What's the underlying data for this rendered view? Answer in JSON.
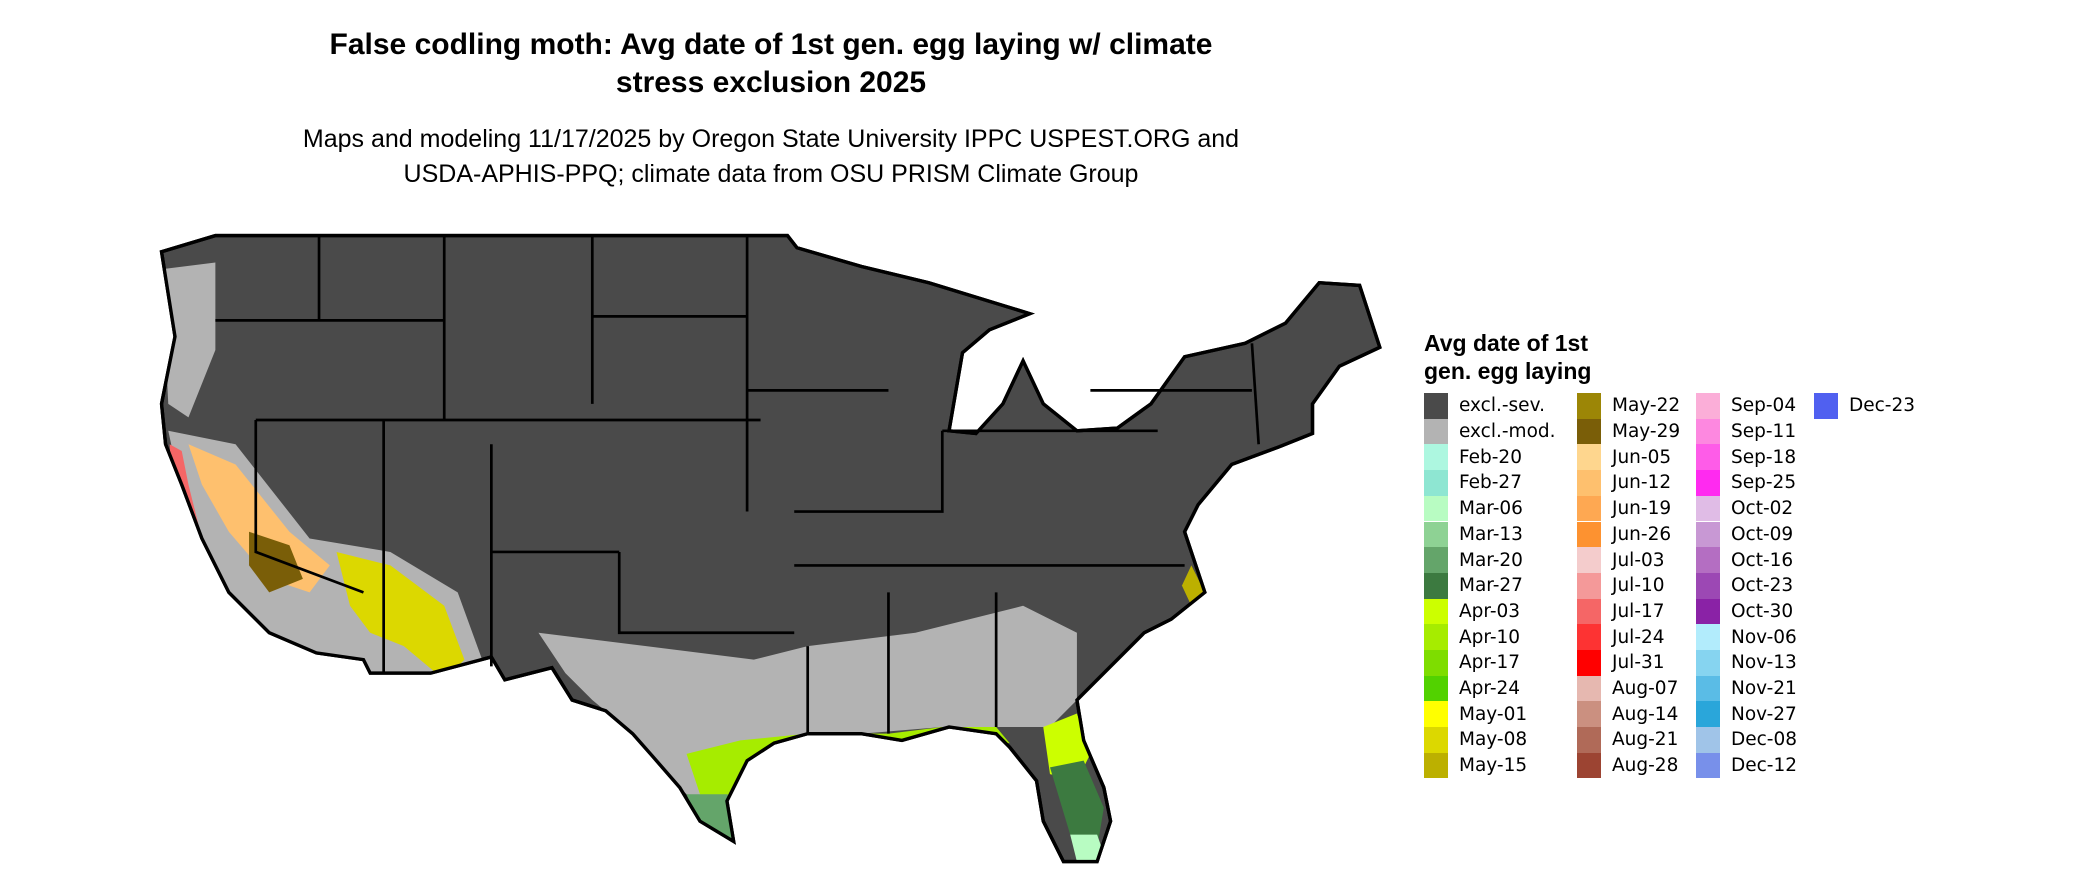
{
  "chart_data": {
    "type": "heatmap",
    "title": "False codling moth: Avg date of 1st gen. egg laying w/ climate stress exclusion 2025",
    "title_lines": [
      "False codling moth: Avg date of 1st gen. egg laying w/ climate",
      "stress exclusion 2025"
    ],
    "subtitle_lines": [
      "Maps and modeling 11/17/2025 by Oregon State University IPPC USPEST.ORG and",
      "USDA-APHIS-PPQ; climate data from OSU PRISM Climate Group"
    ],
    "legend_title_lines": [
      "Avg date of 1st",
      "gen. egg laying"
    ],
    "legend_placement": "right",
    "legend": [
      {
        "label": "excl.-sev.",
        "color": "#4a4a4a"
      },
      {
        "label": "excl.-mod.",
        "color": "#b3b3b3"
      },
      {
        "label": "Feb-20",
        "color": "#adf7e0"
      },
      {
        "label": "Feb-27",
        "color": "#8ee6d2"
      },
      {
        "label": "Mar-06",
        "color": "#b8fcc2"
      },
      {
        "label": "Mar-13",
        "color": "#8ed294"
      },
      {
        "label": "Mar-20",
        "color": "#64a56a"
      },
      {
        "label": "Mar-27",
        "color": "#3c7a40"
      },
      {
        "label": "Apr-03",
        "color": "#ccff00"
      },
      {
        "label": "Apr-10",
        "color": "#a6ec00"
      },
      {
        "label": "Apr-17",
        "color": "#7edd00"
      },
      {
        "label": "Apr-24",
        "color": "#52d200"
      },
      {
        "label": "May-01",
        "color": "#ffff00"
      },
      {
        "label": "May-08",
        "color": "#dcd800"
      },
      {
        "label": "May-15",
        "color": "#bcb000"
      },
      {
        "label": "May-22",
        "color": "#9c8606"
      },
      {
        "label": "May-29",
        "color": "#7a5e08"
      },
      {
        "label": "Jun-05",
        "color": "#fed68e"
      },
      {
        "label": "Jun-12",
        "color": "#fec06e"
      },
      {
        "label": "Jun-19",
        "color": "#fea852"
      },
      {
        "label": "Jun-26",
        "color": "#fd9230"
      },
      {
        "label": "Jul-03",
        "color": "#f4cccc"
      },
      {
        "label": "Jul-10",
        "color": "#f49999"
      },
      {
        "label": "Jul-17",
        "color": "#f56666"
      },
      {
        "label": "Jul-24",
        "color": "#fd3333"
      },
      {
        "label": "Jul-31",
        "color": "#ff0000"
      },
      {
        "label": "Aug-07",
        "color": "#e6b8b0"
      },
      {
        "label": "Aug-14",
        "color": "#cb9080"
      },
      {
        "label": "Aug-21",
        "color": "#b06a58"
      },
      {
        "label": "Aug-28",
        "color": "#9c4432"
      },
      {
        "label": "Sep-04",
        "color": "#fbaed8"
      },
      {
        "label": "Sep-11",
        "color": "#fd88e0"
      },
      {
        "label": "Sep-18",
        "color": "#fe5ce8"
      },
      {
        "label": "Sep-25",
        "color": "#ff2af0"
      },
      {
        "label": "Oct-02",
        "color": "#e0bce6"
      },
      {
        "label": "Oct-09",
        "color": "#c898d4"
      },
      {
        "label": "Oct-16",
        "color": "#b46ec2"
      },
      {
        "label": "Oct-23",
        "color": "#9c48b4"
      },
      {
        "label": "Oct-30",
        "color": "#8a22a6"
      },
      {
        "label": "Nov-06",
        "color": "#b2ecfc"
      },
      {
        "label": "Nov-13",
        "color": "#86d4f0"
      },
      {
        "label": "Nov-21",
        "color": "#5abce6"
      },
      {
        "label": "Nov-27",
        "color": "#2aa6da"
      },
      {
        "label": "Dec-08",
        "color": "#a0c4e8"
      },
      {
        "label": "Dec-12",
        "color": "#7890ea"
      },
      {
        "label": "Dec-23",
        "color": "#5060f0"
      }
    ]
  }
}
